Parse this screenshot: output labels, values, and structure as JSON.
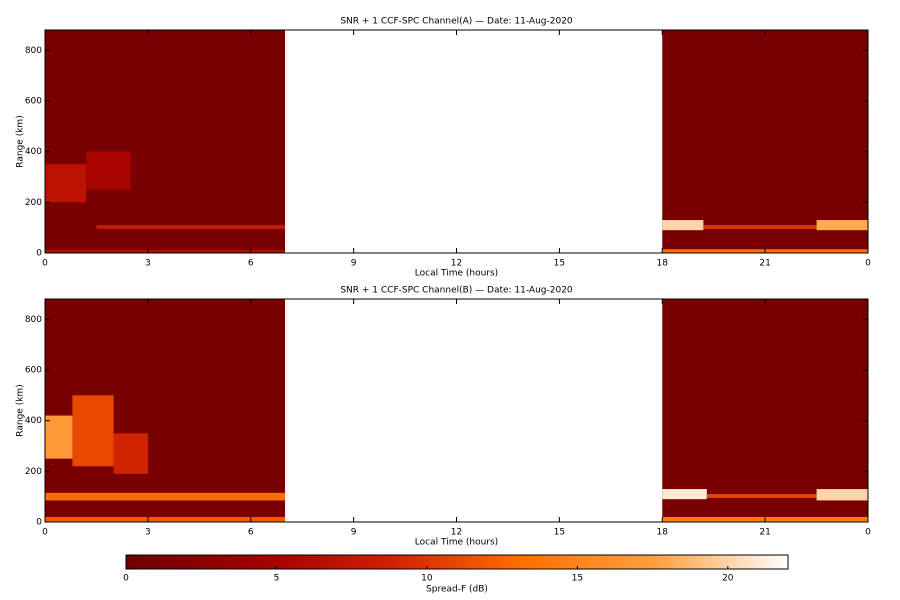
{
  "chart_data": [
    {
      "type": "heatmap",
      "title": "SNR + 1 CCF-SPC Channel(A) — Date: 11-Aug-2020",
      "xlabel": "Local Time (hours)",
      "ylabel": "Range (km)",
      "xlim": [
        0,
        24
      ],
      "ylim": [
        0,
        880
      ],
      "xticks": [
        0,
        3,
        6,
        9,
        12,
        15,
        18,
        21,
        {
          "value": 24,
          "label": "0"
        }
      ],
      "yticks": [
        0,
        200,
        400,
        600,
        800
      ],
      "regions": [
        {
          "x": [
            0,
            7
          ],
          "y": [
            0,
            880
          ],
          "value": 1
        },
        {
          "x": [
            18,
            24
          ],
          "y": [
            0,
            880
          ],
          "value": 1
        },
        {
          "x": [
            0,
            7
          ],
          "y": [
            0,
            12
          ],
          "value": 6
        },
        {
          "x": [
            18,
            24
          ],
          "y": [
            0,
            15
          ],
          "value": 13
        },
        {
          "x": [
            0,
            1.2
          ],
          "y": [
            200,
            350
          ],
          "value": 7
        },
        {
          "x": [
            1.2,
            2.5
          ],
          "y": [
            250,
            400
          ],
          "value": 5
        },
        {
          "x": [
            1.5,
            7
          ],
          "y": [
            95,
            110
          ],
          "value": 8
        },
        {
          "x": [
            18,
            19.2
          ],
          "y": [
            90,
            130
          ],
          "value": 20
        },
        {
          "x": [
            19.2,
            22.5
          ],
          "y": [
            95,
            110
          ],
          "value": 10
        },
        {
          "x": [
            22.5,
            24
          ],
          "y": [
            90,
            130
          ],
          "value": 18
        }
      ]
    },
    {
      "type": "heatmap",
      "title": "SNR + 1 CCF-SPC Channel(B) — Date: 11-Aug-2020",
      "xlabel": "Local Time (hours)",
      "ylabel": "Range (km)",
      "xlim": [
        0,
        24
      ],
      "ylim": [
        0,
        880
      ],
      "xticks": [
        0,
        3,
        6,
        9,
        12,
        15,
        18,
        21,
        {
          "value": 24,
          "label": "0"
        }
      ],
      "yticks": [
        0,
        200,
        400,
        600,
        800
      ],
      "regions": [
        {
          "x": [
            0,
            7
          ],
          "y": [
            0,
            880
          ],
          "value": 1
        },
        {
          "x": [
            18,
            24
          ],
          "y": [
            0,
            880
          ],
          "value": 1
        },
        {
          "x": [
            0,
            7
          ],
          "y": [
            0,
            20
          ],
          "value": 12
        },
        {
          "x": [
            18,
            24
          ],
          "y": [
            0,
            20
          ],
          "value": 14
        },
        {
          "x": [
            0.8,
            2
          ],
          "y": [
            220,
            500
          ],
          "value": 11
        },
        {
          "x": [
            0,
            0.8
          ],
          "y": [
            250,
            420
          ],
          "value": 17
        },
        {
          "x": [
            2,
            3
          ],
          "y": [
            190,
            350
          ],
          "value": 9
        },
        {
          "x": [
            0,
            7
          ],
          "y": [
            85,
            115
          ],
          "value": 13
        },
        {
          "x": [
            18,
            19.3
          ],
          "y": [
            90,
            130
          ],
          "value": 21
        },
        {
          "x": [
            19.3,
            22.5
          ],
          "y": [
            95,
            110
          ],
          "value": 11
        },
        {
          "x": [
            22.5,
            24
          ],
          "y": [
            85,
            130
          ],
          "value": 20
        }
      ]
    }
  ],
  "colorbar": {
    "label": "Spread-F (dB)",
    "clim": [
      0,
      22
    ],
    "ticks": [
      0,
      5,
      10,
      15,
      20
    ],
    "colors": [
      "#6e0000",
      "#a00000",
      "#d02000",
      "#ff7000",
      "#ffa040",
      "#ffffff"
    ]
  }
}
